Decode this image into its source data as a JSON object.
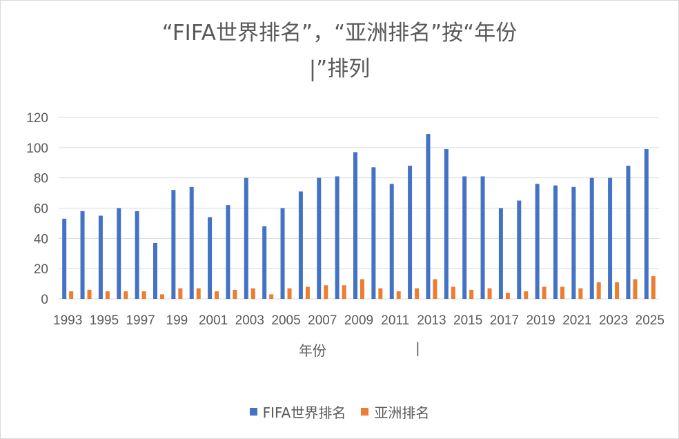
{
  "chart_data": {
    "type": "bar",
    "title_lines": [
      "“FIFA世界排名”，“亚洲排名”按“年份",
      "|”排列"
    ],
    "xlabel": "年份",
    "xlabel_extra": "|",
    "x_tick_labels": [
      "1993",
      "1995",
      "1997",
      "199",
      "2001",
      "2003",
      "2005",
      "2007",
      "2009",
      "2011",
      "2013",
      "2015",
      "2017",
      "2019",
      "2021",
      "2023",
      "2025"
    ],
    "ylim": [
      0,
      120
    ],
    "yticks": [
      0,
      20,
      40,
      60,
      80,
      100,
      120
    ],
    "grid": true,
    "legend_position": "bottom",
    "series": [
      {
        "name": "FIFA世界排名",
        "color": "#4472c4",
        "values": [
          53,
          58,
          55,
          60,
          58,
          37,
          72,
          74,
          54,
          62,
          80,
          48,
          60,
          71,
          80,
          81,
          97,
          87,
          76,
          88,
          109,
          99,
          81,
          81,
          60,
          65,
          76,
          75,
          74,
          80,
          80,
          88,
          99
        ]
      },
      {
        "name": "亚洲排名",
        "color": "#ed7d31",
        "values": [
          5,
          6,
          5,
          5,
          5,
          3,
          7,
          7,
          5,
          6,
          7,
          3,
          7,
          8,
          9,
          9,
          13,
          7,
          5,
          7,
          13,
          8,
          6,
          7,
          4,
          5,
          8,
          8,
          7,
          11,
          11,
          13,
          15
        ]
      }
    ]
  }
}
